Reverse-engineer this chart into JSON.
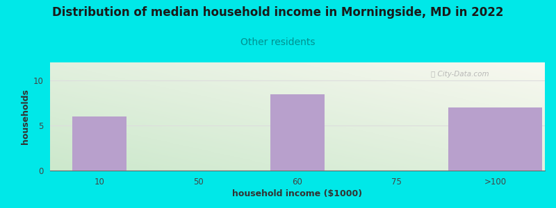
{
  "title": "Distribution of median household income in Morningside, MD in 2022",
  "subtitle": "Other residents",
  "xlabel": "household income ($1000)",
  "ylabel": "households",
  "categories": [
    "10",
    "50",
    "60",
    "75",
    ">100"
  ],
  "values": [
    6,
    0,
    8.5,
    0,
    7
  ],
  "bar_color": "#b8a0cc",
  "ylim": [
    0,
    12
  ],
  "yticks": [
    0,
    5,
    10
  ],
  "bg_color": "#00e8e8",
  "title_fontsize": 12,
  "subtitle_fontsize": 10,
  "subtitle_color": "#009090",
  "axis_label_fontsize": 9,
  "tick_fontsize": 8.5,
  "watermark": "Ⓢ City-Data.com",
  "watermark_color": "#aaaaaa",
  "grid_color": "#dddddd"
}
